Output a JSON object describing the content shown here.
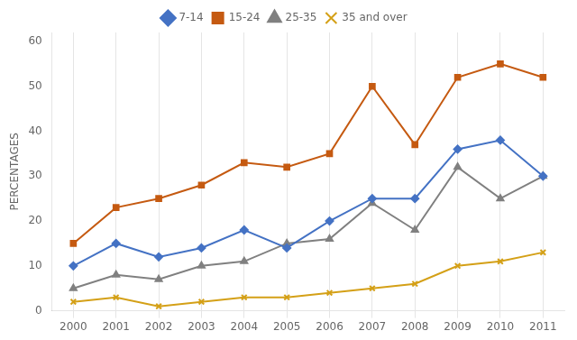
{
  "chart_data": {
    "type": "line",
    "ylabel": "PERCENTAGES",
    "x": [
      2000,
      2001,
      2002,
      2003,
      2004,
      2005,
      2006,
      2007,
      2008,
      2009,
      2010,
      2011
    ],
    "series": [
      {
        "name": "7-14",
        "color": "#4472c4",
        "marker": "diamond",
        "values": [
          10,
          15,
          12,
          14,
          18,
          14,
          20,
          25,
          25,
          36,
          38,
          30
        ]
      },
      {
        "name": "15-24",
        "color": "#c55a11",
        "marker": "square",
        "values": [
          15,
          23,
          25,
          28,
          33,
          32,
          35,
          50,
          37,
          52,
          55,
          52
        ]
      },
      {
        "name": "25-35",
        "color": "#808080",
        "marker": "triangle",
        "values": [
          5,
          8,
          7,
          10,
          11,
          15,
          16,
          24,
          18,
          32,
          25,
          30
        ]
      },
      {
        "name": "35 and over",
        "color": "#d4a017",
        "marker": "x",
        "values": [
          2,
          3,
          1,
          2,
          3,
          3,
          4,
          5,
          6,
          10,
          11,
          13
        ]
      }
    ],
    "xlim": [
      1999.5,
      2011.5
    ],
    "xticks": [
      2000,
      2001,
      2002,
      2003,
      2004,
      2005,
      2006,
      2007,
      2008,
      2009,
      2010,
      2011
    ],
    "ylim": [
      0,
      62
    ],
    "yticks": [
      0,
      10,
      20,
      30,
      40,
      50,
      60
    ],
    "grid": "x",
    "legend": "top"
  }
}
